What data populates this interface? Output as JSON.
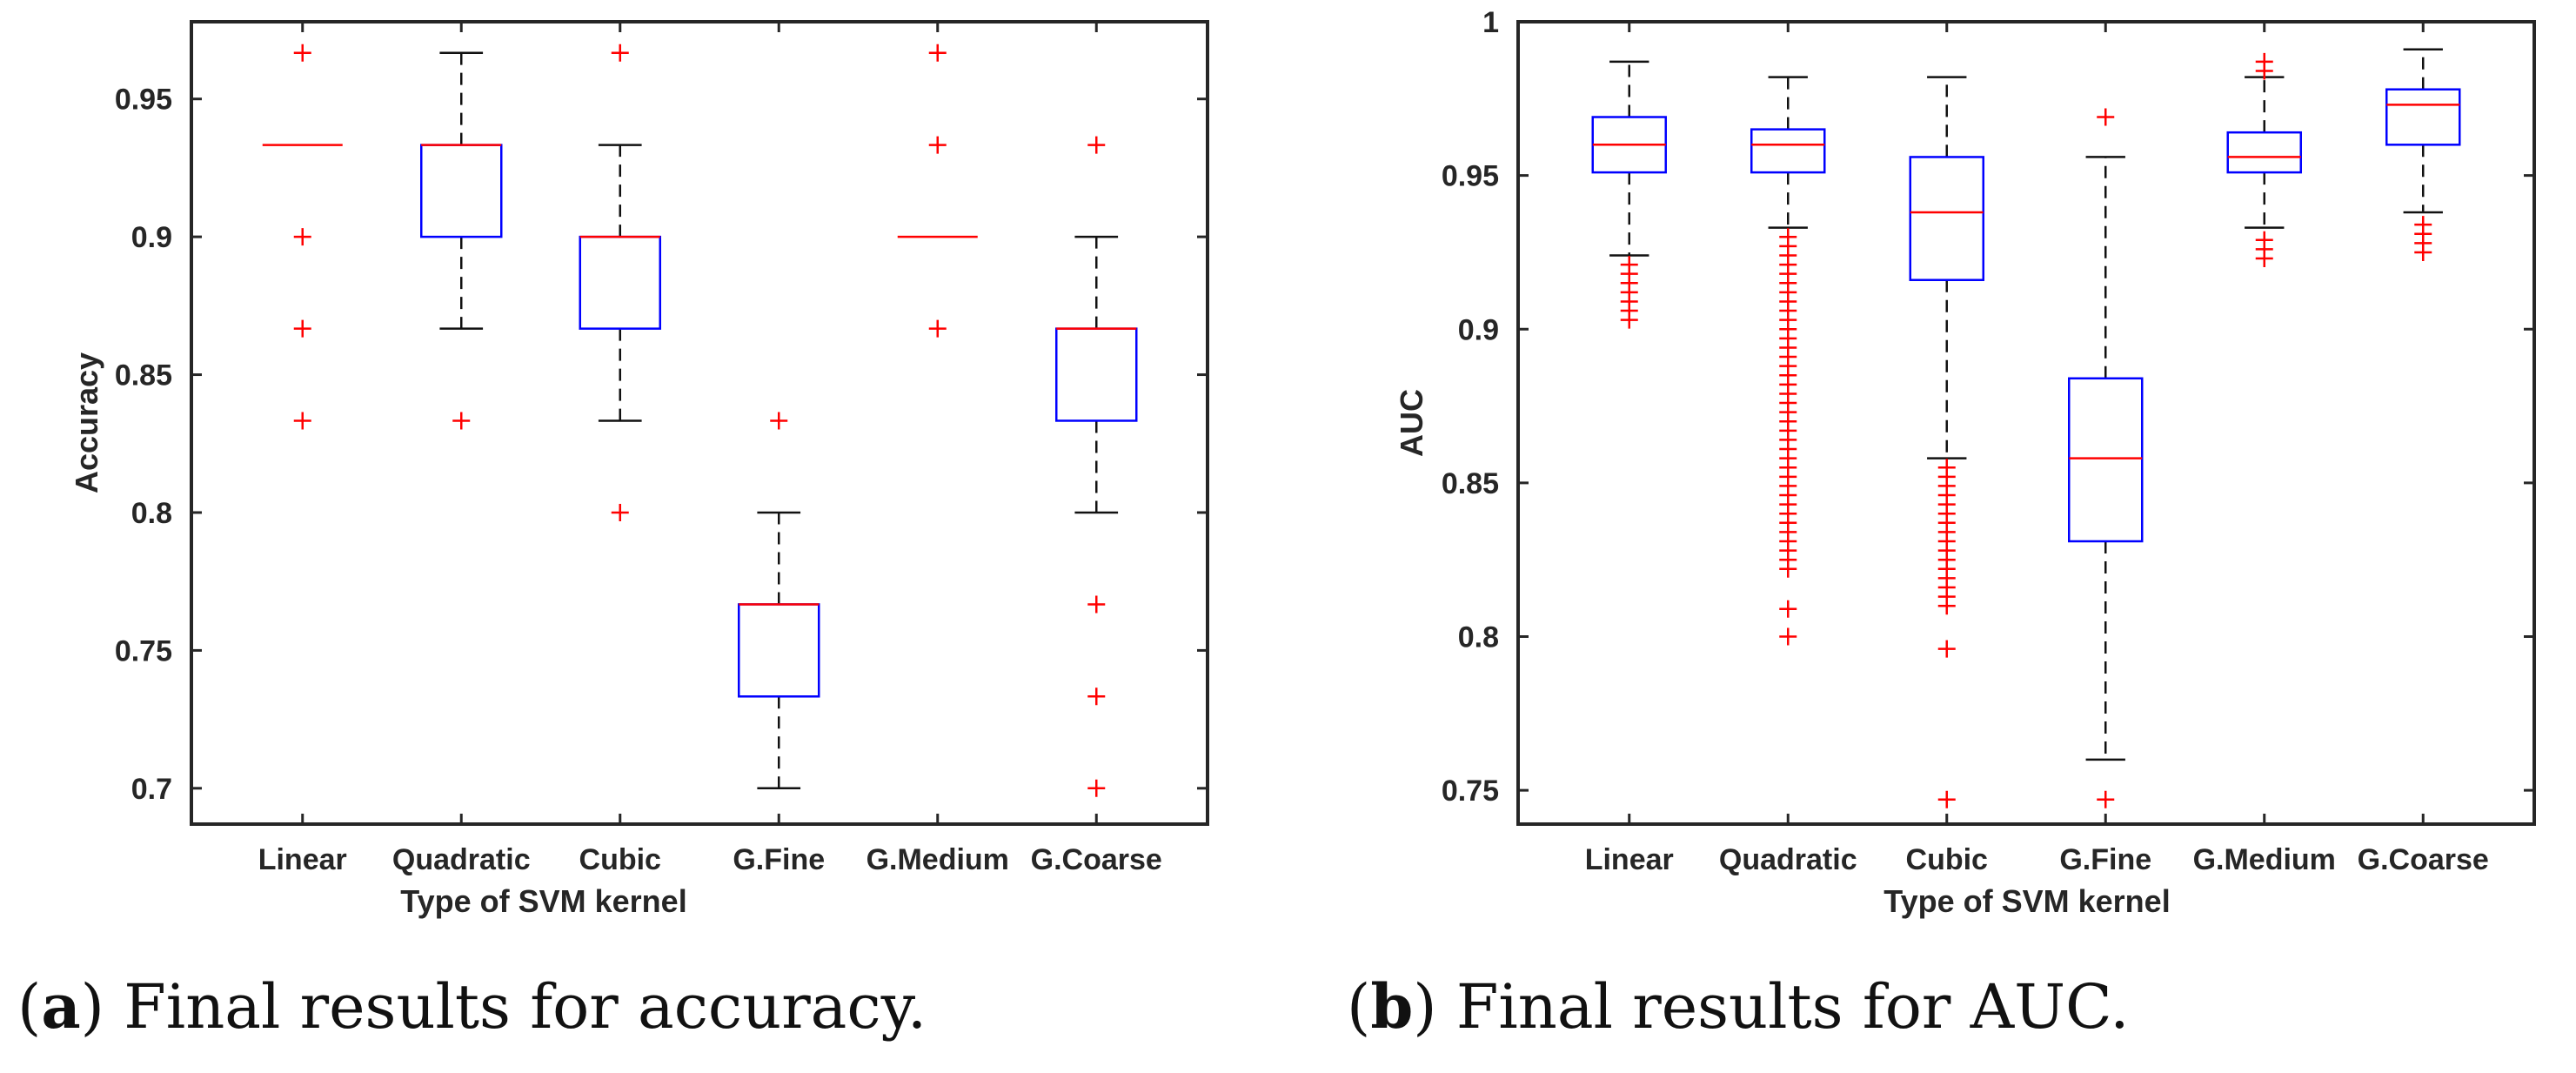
{
  "chart_data": [
    {
      "type": "box",
      "panel": "a",
      "caption_letter": "a",
      "caption_text": "Final results for accuracy.",
      "xlabel": "Type of SVM kernel",
      "ylabel": "Accuracy",
      "ylim": [
        0.687,
        0.978
      ],
      "yticks": [
        0.7,
        0.75,
        0.8,
        0.85,
        0.9,
        0.95
      ],
      "ytick_labels": [
        "0.7",
        "0.75",
        "0.8",
        "0.85",
        "0.9",
        "0.95"
      ],
      "categories": [
        "Linear",
        "Quadratic",
        "Cubic",
        "G.Fine",
        "G.Medium",
        "G.Coarse"
      ],
      "boxes": [
        {
          "q1": 0.9333,
          "median": 0.9333,
          "q3": 0.9333,
          "whisker_low": 0.9333,
          "whisker_high": 0.9333,
          "outliers": [
            0.9667,
            0.9,
            0.8667,
            0.8333
          ]
        },
        {
          "q1": 0.9,
          "median": 0.9333,
          "q3": 0.9333,
          "whisker_low": 0.8667,
          "whisker_high": 0.9667,
          "outliers": [
            0.8333
          ]
        },
        {
          "q1": 0.8667,
          "median": 0.9,
          "q3": 0.9,
          "whisker_low": 0.8333,
          "whisker_high": 0.9333,
          "outliers": [
            0.9667,
            0.8
          ]
        },
        {
          "q1": 0.7333,
          "median": 0.7667,
          "q3": 0.7667,
          "whisker_low": 0.7,
          "whisker_high": 0.8,
          "outliers": [
            0.8333
          ]
        },
        {
          "q1": 0.9,
          "median": 0.9,
          "q3": 0.9,
          "whisker_low": 0.9,
          "whisker_high": 0.9,
          "outliers": [
            0.9667,
            0.9333,
            0.8667
          ]
        },
        {
          "q1": 0.8333,
          "median": 0.8667,
          "q3": 0.8667,
          "whisker_low": 0.8,
          "whisker_high": 0.9,
          "outliers": [
            0.9333,
            0.7667,
            0.7333,
            0.7
          ]
        }
      ]
    },
    {
      "type": "box",
      "panel": "b",
      "caption_letter": "b",
      "caption_text": "Final results for AUC.",
      "xlabel": "Type of SVM kernel",
      "ylabel": "AUC",
      "ylim": [
        0.739,
        1.0
      ],
      "yticks": [
        0.75,
        0.8,
        0.85,
        0.9,
        0.95,
        1.0
      ],
      "ytick_labels": [
        "0.75",
        "0.8",
        "0.85",
        "0.9",
        "0.95",
        "1"
      ],
      "categories": [
        "Linear",
        "Quadratic",
        "Cubic",
        "G.Fine",
        "G.Medium",
        "G.Coarse"
      ],
      "boxes": [
        {
          "q1": 0.951,
          "median": 0.96,
          "q3": 0.969,
          "whisker_low": 0.924,
          "whisker_high": 0.987,
          "outliers": [
            0.921,
            0.918,
            0.915,
            0.912,
            0.909,
            0.906,
            0.903
          ]
        },
        {
          "q1": 0.951,
          "median": 0.96,
          "q3": 0.965,
          "whisker_low": 0.933,
          "whisker_high": 0.982,
          "outliers": [
            0.93,
            0.927,
            0.924,
            0.921,
            0.918,
            0.915,
            0.912,
            0.909,
            0.906,
            0.903,
            0.9,
            0.897,
            0.894,
            0.891,
            0.888,
            0.885,
            0.882,
            0.879,
            0.876,
            0.873,
            0.87,
            0.867,
            0.864,
            0.861,
            0.858,
            0.855,
            0.852,
            0.849,
            0.846,
            0.843,
            0.84,
            0.837,
            0.834,
            0.831,
            0.828,
            0.825,
            0.822,
            0.809,
            0.8
          ]
        },
        {
          "q1": 0.916,
          "median": 0.938,
          "q3": 0.956,
          "whisker_low": 0.858,
          "whisker_high": 0.982,
          "outliers": [
            0.855,
            0.852,
            0.849,
            0.846,
            0.843,
            0.84,
            0.837,
            0.834,
            0.831,
            0.828,
            0.825,
            0.822,
            0.819,
            0.816,
            0.813,
            0.81,
            0.796,
            0.747
          ]
        },
        {
          "q1": 0.831,
          "median": 0.858,
          "q3": 0.884,
          "whisker_low": 0.76,
          "whisker_high": 0.956,
          "outliers": [
            0.969,
            0.747
          ]
        },
        {
          "q1": 0.951,
          "median": 0.956,
          "q3": 0.964,
          "whisker_low": 0.933,
          "whisker_high": 0.982,
          "outliers": [
            0.987,
            0.984,
            0.929,
            0.926,
            0.923
          ]
        },
        {
          "q1": 0.96,
          "median": 0.973,
          "q3": 0.978,
          "whisker_low": 0.938,
          "whisker_high": 0.991,
          "outliers": [
            0.934,
            0.931,
            0.928,
            0.925
          ]
        }
      ]
    }
  ]
}
